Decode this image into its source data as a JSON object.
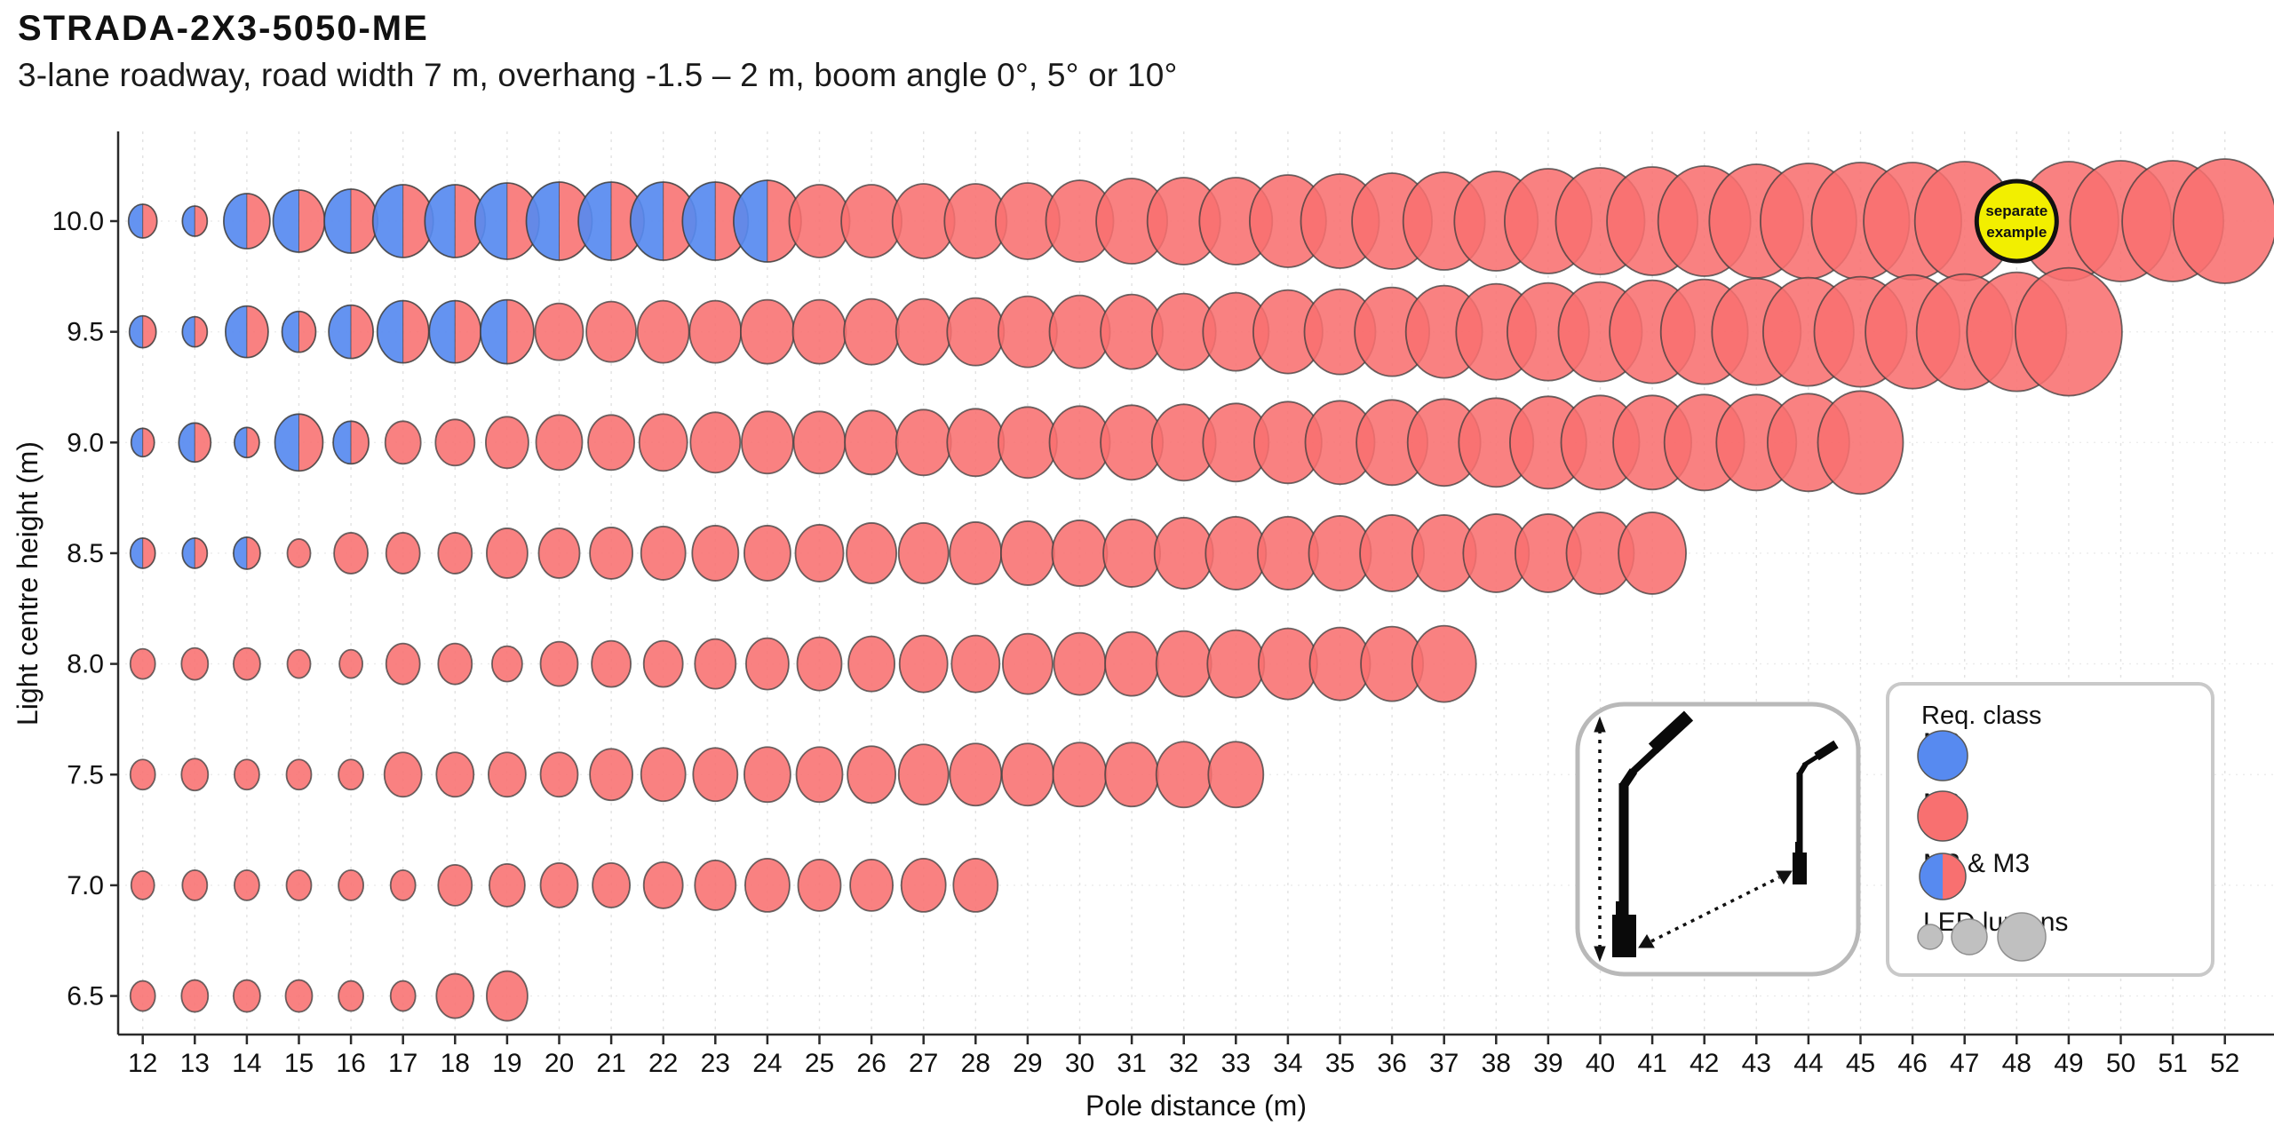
{
  "header": {
    "title": "STRADA-2X3-5050-ME",
    "subtitle": "3-lane roadway, road width 7 m, overhang -1.5 – 2 m, boom angle 0°, 5° or 10°"
  },
  "chart_data": {
    "type": "bubble",
    "title": "STRADA-2X3-5050-ME",
    "xlabel": "Pole distance (m)",
    "ylabel": "Light centre height (m)",
    "x_ticks": [
      12,
      13,
      14,
      15,
      16,
      17,
      18,
      19,
      20,
      21,
      22,
      23,
      24,
      25,
      26,
      27,
      28,
      29,
      30,
      31,
      32,
      33,
      34,
      35,
      36,
      37,
      38,
      39,
      40,
      41,
      42,
      43,
      44,
      45,
      46,
      47,
      48,
      49,
      50,
      51,
      52
    ],
    "y_ticks": [
      {
        "label": "10.0",
        "value": 10.0
      },
      {
        "label": "9.5",
        "value": 9.5
      },
      {
        "label": "9.0",
        "value": 9.0
      },
      {
        "label": "8.5",
        "value": 8.5
      },
      {
        "label": "8.0",
        "value": 8.0
      },
      {
        "label": "7.5",
        "value": 7.5
      },
      {
        "label": "7.0",
        "value": 7.0
      },
      {
        "label": "6.5",
        "value": 6.5
      }
    ],
    "xlim": [
      11.5,
      52.5
    ],
    "ylim": [
      6.3,
      10.3
    ],
    "grid": true,
    "colors": {
      "m2_blue": "#578af0",
      "m3_red": "#f87070",
      "bubble_stroke": "#3c3c3c",
      "example_yellow": "#f2ef00",
      "example_border": "#111111",
      "lumens_gray": "#c0c0c0",
      "grid_gray": "#e2e2e2",
      "axis_dark": "#2a2a2a"
    },
    "rows": [
      {
        "height": 10.0,
        "x_start": 12,
        "x_end": 52,
        "m2m3_through": 24,
        "radii": [
          16,
          14,
          26,
          29,
          30,
          34,
          34,
          36,
          37,
          37,
          37,
          37,
          38,
          34,
          34,
          35,
          35,
          36,
          38,
          40,
          41,
          41,
          43,
          44,
          45,
          46,
          47,
          49,
          50,
          51,
          52,
          53,
          54,
          55,
          55,
          56,
          45,
          56,
          57,
          57,
          58
        ]
      },
      {
        "height": 9.5,
        "x_start": 12,
        "x_end": 49,
        "m2m3_through": 19,
        "radii": [
          15,
          14,
          24,
          19,
          25,
          29,
          29,
          30,
          27,
          28,
          29,
          29,
          30,
          30,
          31,
          31,
          32,
          33,
          34,
          35,
          36,
          37,
          39,
          40,
          42,
          43,
          45,
          46,
          47,
          48,
          49,
          50,
          51,
          52,
          53,
          54,
          56,
          60
        ]
      },
      {
        "height": 9.0,
        "x_start": 12,
        "x_end": 45,
        "m2m3_through": 16,
        "radii": [
          13,
          18,
          14,
          27,
          20,
          20,
          22,
          24,
          26,
          26,
          27,
          28,
          29,
          29,
          30,
          31,
          32,
          33,
          34,
          35,
          36,
          37,
          38,
          39,
          40,
          41,
          42,
          43,
          44,
          44,
          45,
          45,
          46,
          48
        ]
      },
      {
        "height": 8.5,
        "x_start": 12,
        "x_end": 41,
        "m2m3_through": 14,
        "radii": [
          14,
          14,
          15,
          13,
          19,
          19,
          19,
          23,
          23,
          24,
          25,
          26,
          26,
          27,
          28,
          28,
          29,
          30,
          31,
          32,
          33,
          34,
          34,
          35,
          36,
          36,
          37,
          37,
          38,
          38
        ]
      },
      {
        "height": 8.0,
        "x_start": 12,
        "x_end": 37,
        "m2m3_through": null,
        "radii": [
          14,
          15,
          15,
          13,
          13,
          19,
          19,
          17,
          21,
          22,
          22,
          23,
          24,
          25,
          26,
          27,
          27,
          28,
          29,
          30,
          31,
          32,
          33,
          34,
          35,
          36
        ]
      },
      {
        "height": 7.5,
        "x_start": 12,
        "x_end": 33,
        "m2m3_through": null,
        "radii": [
          14,
          15,
          14,
          14,
          14,
          21,
          21,
          21,
          21,
          24,
          25,
          25,
          26,
          26,
          27,
          28,
          29,
          29,
          30,
          30,
          31,
          31
        ]
      },
      {
        "height": 7.0,
        "x_start": 12,
        "x_end": 28,
        "m2m3_through": null,
        "radii": [
          13,
          14,
          14,
          14,
          14,
          14,
          19,
          20,
          21,
          21,
          22,
          23,
          25,
          24,
          24,
          25,
          25
        ]
      },
      {
        "height": 6.5,
        "x_start": 12,
        "x_end": 19,
        "m2m3_through": null,
        "radii": [
          14,
          15,
          15,
          15,
          14,
          14,
          21,
          23
        ]
      }
    ],
    "example_bubble": {
      "x": 48,
      "height": 10.0,
      "lines": [
        "separate",
        "example"
      ]
    },
    "legend": {
      "title": "Req. class",
      "items": [
        {
          "label": "M2",
          "swatch": "m2"
        },
        {
          "label": "M3",
          "swatch": "m3"
        },
        {
          "label": "M2 & M3",
          "swatch": "split"
        },
        {
          "label": "LED lumens",
          "swatch": "lumens"
        }
      ]
    },
    "icons": {
      "inset": "street-light-poles-diagram",
      "inset_arrows": [
        "height-arrow",
        "pole-distance-arrow"
      ]
    }
  }
}
